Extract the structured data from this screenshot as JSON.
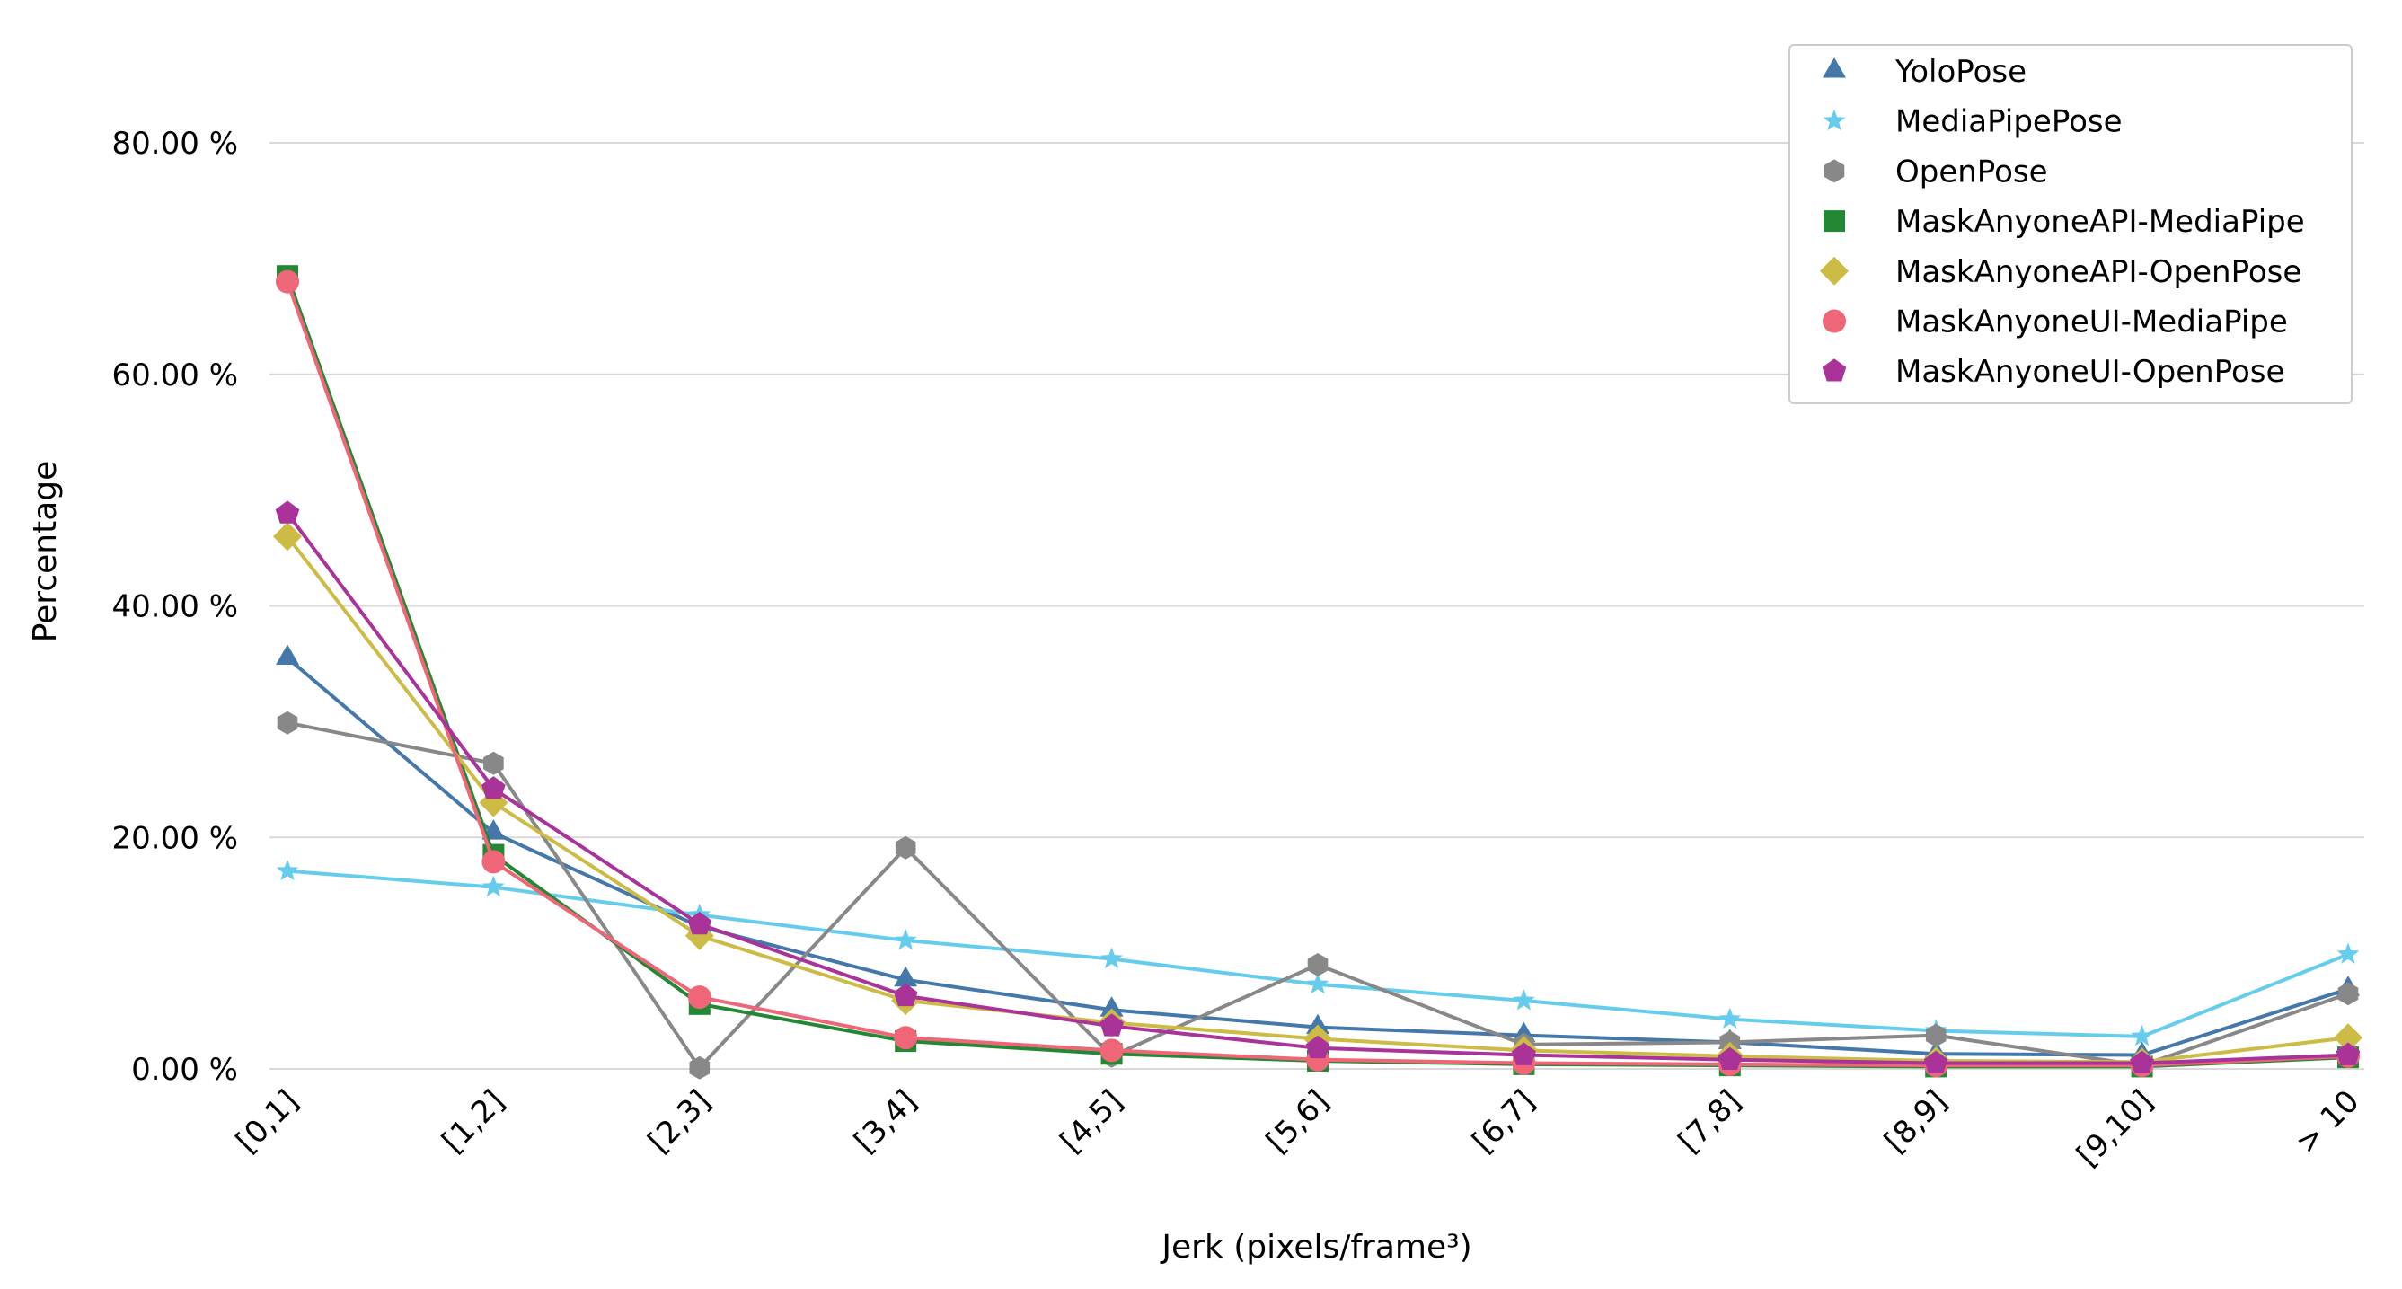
{
  "chart_data": {
    "type": "line",
    "title": "",
    "xlabel": "Jerk (pixels/frame³)",
    "ylabel": "Percentage",
    "ylim": [
      0,
      80
    ],
    "yticks": [
      "0.00 %",
      "20.00 %",
      "40.00 %",
      "60.00 %",
      "80.00 %"
    ],
    "ytick_values": [
      0,
      20,
      40,
      60,
      80
    ],
    "grid": "horizontal",
    "legend_position": "top-right",
    "categories": [
      "[0,1]",
      "[1,2]",
      "[2,3]",
      "[3,4]",
      "[4,5]",
      "[5,6]",
      "[6,7]",
      "[7,8]",
      "[8,9]",
      "[9,10]",
      "> 10"
    ],
    "series": [
      {
        "name": "YoloPose",
        "color": "#4477aa",
        "marker": "triangle",
        "values": [
          35.5,
          20.4,
          12.3,
          7.7,
          5.1,
          3.6,
          2.9,
          2.3,
          1.3,
          1.2,
          6.9
        ]
      },
      {
        "name": "MediaPipePose",
        "color": "#66ccee",
        "marker": "star",
        "values": [
          17.1,
          15.7,
          13.3,
          11.1,
          9.5,
          7.3,
          5.9,
          4.3,
          3.3,
          2.8,
          9.9
        ]
      },
      {
        "name": "OpenPose",
        "color": "#888888",
        "marker": "hexagon",
        "values": [
          29.9,
          26.4,
          0.1,
          19.1,
          1.1,
          9.0,
          2.1,
          2.3,
          2.9,
          0.3,
          6.5
        ]
      },
      {
        "name": "MaskAnyoneAPI-MediaPipe",
        "color": "#228833",
        "marker": "square",
        "values": [
          68.5,
          18.5,
          5.6,
          2.4,
          1.3,
          0.7,
          0.4,
          0.3,
          0.2,
          0.2,
          1.0
        ]
      },
      {
        "name": "MaskAnyoneAPI-OpenPose",
        "color": "#ccbb44",
        "marker": "diamond",
        "values": [
          46.0,
          23.0,
          11.5,
          5.9,
          4.0,
          2.6,
          1.6,
          1.1,
          0.7,
          0.6,
          2.7
        ]
      },
      {
        "name": "MaskAnyoneUI-MediaPipe",
        "color": "#ee6677",
        "marker": "circle",
        "values": [
          68.0,
          17.9,
          6.2,
          2.7,
          1.6,
          0.8,
          0.5,
          0.4,
          0.3,
          0.3,
          1.1
        ]
      },
      {
        "name": "MaskAnyoneUI-OpenPose",
        "color": "#aa3399",
        "marker": "pentagon",
        "values": [
          48.0,
          24.2,
          12.5,
          6.3,
          3.7,
          1.8,
          1.2,
          0.8,
          0.5,
          0.5,
          1.2
        ]
      }
    ]
  }
}
